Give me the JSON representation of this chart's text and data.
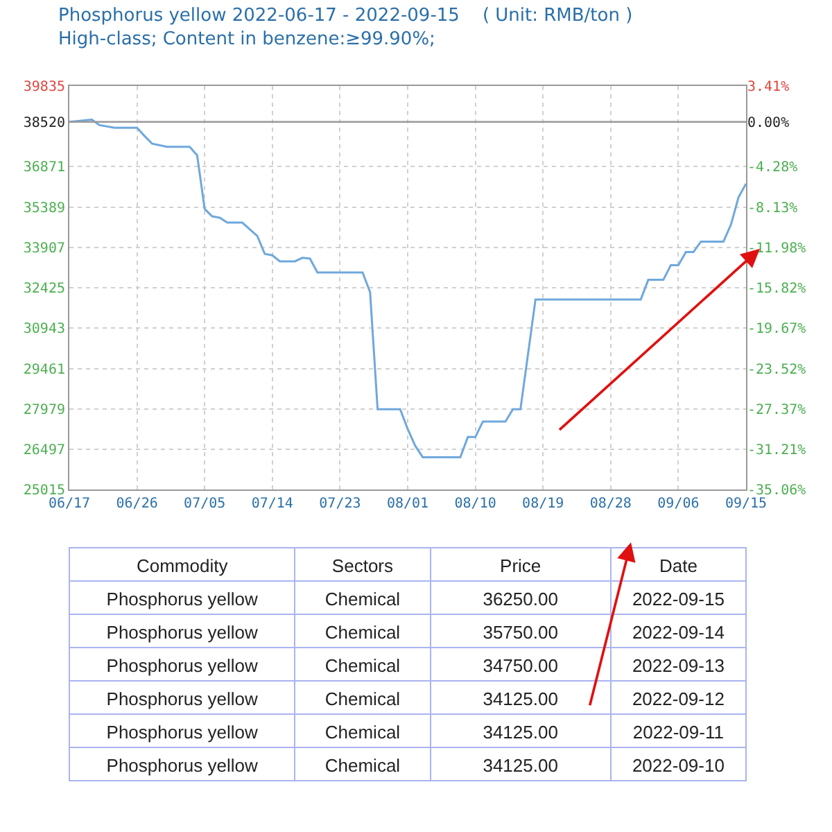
{
  "chart_data": [
    {
      "type": "line",
      "title": "Phosphorus yellow 2022-06-17 - 2022-09-15    ( Unit: RMB/ton )",
      "subtitle": "High-class; Content in benzene:≥99.90%;",
      "series": [
        {
          "color": "#6fa8dc",
          "x": [
            "2022-06-17",
            "2022-06-20",
            "2022-06-21",
            "2022-06-23",
            "2022-06-26",
            "2022-06-27",
            "2022-06-28",
            "2022-06-30",
            "2022-07-03",
            "2022-07-04",
            "2022-07-05",
            "2022-07-06",
            "2022-07-07",
            "2022-07-08",
            "2022-07-10",
            "2022-07-12",
            "2022-07-13",
            "2022-07-14",
            "2022-07-15",
            "2022-07-17",
            "2022-07-18",
            "2022-07-19",
            "2022-07-20",
            "2022-07-26",
            "2022-07-27",
            "2022-07-28",
            "2022-07-31",
            "2022-08-01",
            "2022-08-02",
            "2022-08-03",
            "2022-08-08",
            "2022-08-09",
            "2022-08-10",
            "2022-08-11",
            "2022-08-14",
            "2022-08-15",
            "2022-08-16",
            "2022-08-18",
            "2022-09-01",
            "2022-09-02",
            "2022-09-04",
            "2022-09-05",
            "2022-09-06",
            "2022-09-07",
            "2022-09-08",
            "2022-09-09",
            "2022-09-12",
            "2022-09-13",
            "2022-09-14",
            "2022-09-15"
          ],
          "values": [
            38520,
            38600,
            38400,
            38300,
            38300,
            38000,
            37720,
            37600,
            37600,
            37290,
            35320,
            35050,
            35000,
            34820,
            34820,
            34330,
            33670,
            33620,
            33400,
            33400,
            33530,
            33500,
            32990,
            32990,
            32270,
            27970,
            27970,
            27250,
            26630,
            26210,
            26210,
            26950,
            26950,
            27520,
            27520,
            27970,
            27970,
            32000,
            32000,
            32720,
            32720,
            33260,
            33260,
            33740,
            33740,
            34125,
            34125,
            34750,
            35750,
            36250
          ]
        }
      ],
      "xlim": [
        "2022-06-17",
        "2022-09-15"
      ],
      "xticks": [
        {
          "value": "2022-06-17",
          "label": "06/17"
        },
        {
          "value": "2022-06-26",
          "label": "06/26"
        },
        {
          "value": "2022-07-05",
          "label": "07/05"
        },
        {
          "value": "2022-07-14",
          "label": "07/14"
        },
        {
          "value": "2022-07-23",
          "label": "07/23"
        },
        {
          "value": "2022-08-01",
          "label": "08/01"
        },
        {
          "value": "2022-08-10",
          "label": "08/10"
        },
        {
          "value": "2022-08-19",
          "label": "08/19"
        },
        {
          "value": "2022-08-28",
          "label": "08/28"
        },
        {
          "value": "2022-09-06",
          "label": "09/06"
        },
        {
          "value": "2022-09-15",
          "label": "09/15"
        }
      ],
      "ylim": [
        25015,
        39835
      ],
      "yticks": [
        39835,
        38520,
        36871,
        35389,
        33907,
        32425,
        30943,
        29461,
        27979,
        26497,
        25015
      ],
      "y2lim": [
        -35.06,
        3.41
      ],
      "y2ticks": [
        {
          "value": 3.41,
          "label": "3.41%"
        },
        {
          "value": 0,
          "label": "0.00%"
        },
        {
          "value": -4.28,
          "label": "-4.28%"
        },
        {
          "value": -8.13,
          "label": "-8.13%"
        },
        {
          "value": -11.98,
          "label": "-11.98%"
        },
        {
          "value": -15.82,
          "label": "-15.82%"
        },
        {
          "value": -19.67,
          "label": "-19.67%"
        },
        {
          "value": -23.52,
          "label": "-23.52%"
        },
        {
          "value": -27.37,
          "label": "-27.37%"
        },
        {
          "value": -31.21,
          "label": "-31.21%"
        },
        {
          "value": -35.06,
          "label": "-35.06%"
        }
      ],
      "ref_lines": [
        {
          "axis": "y",
          "value": 38520,
          "color": "#999999"
        }
      ],
      "grid": true,
      "marker": "none",
      "line_style": "solid"
    },
    {
      "type": "other",
      "annotations": [
        "Commodity",
        "Sectors",
        "Price",
        "Date",
        "Phosphorus yellow",
        "Chemical",
        "36250.00",
        "2022-09-15",
        "Phosphorus yellow",
        "Chemical",
        "35750.00",
        "2022-09-14",
        "Phosphorus yellow",
        "Chemical",
        "34750.00",
        "2022-09-13",
        "Phosphorus yellow",
        "Chemical",
        "34125.00",
        "2022-09-12",
        "Phosphorus yellow",
        "Chemical",
        "34125.00",
        "2022-09-11",
        "Phosphorus yellow",
        "Chemical",
        "34125.00",
        "2022-09-10"
      ]
    }
  ]
}
